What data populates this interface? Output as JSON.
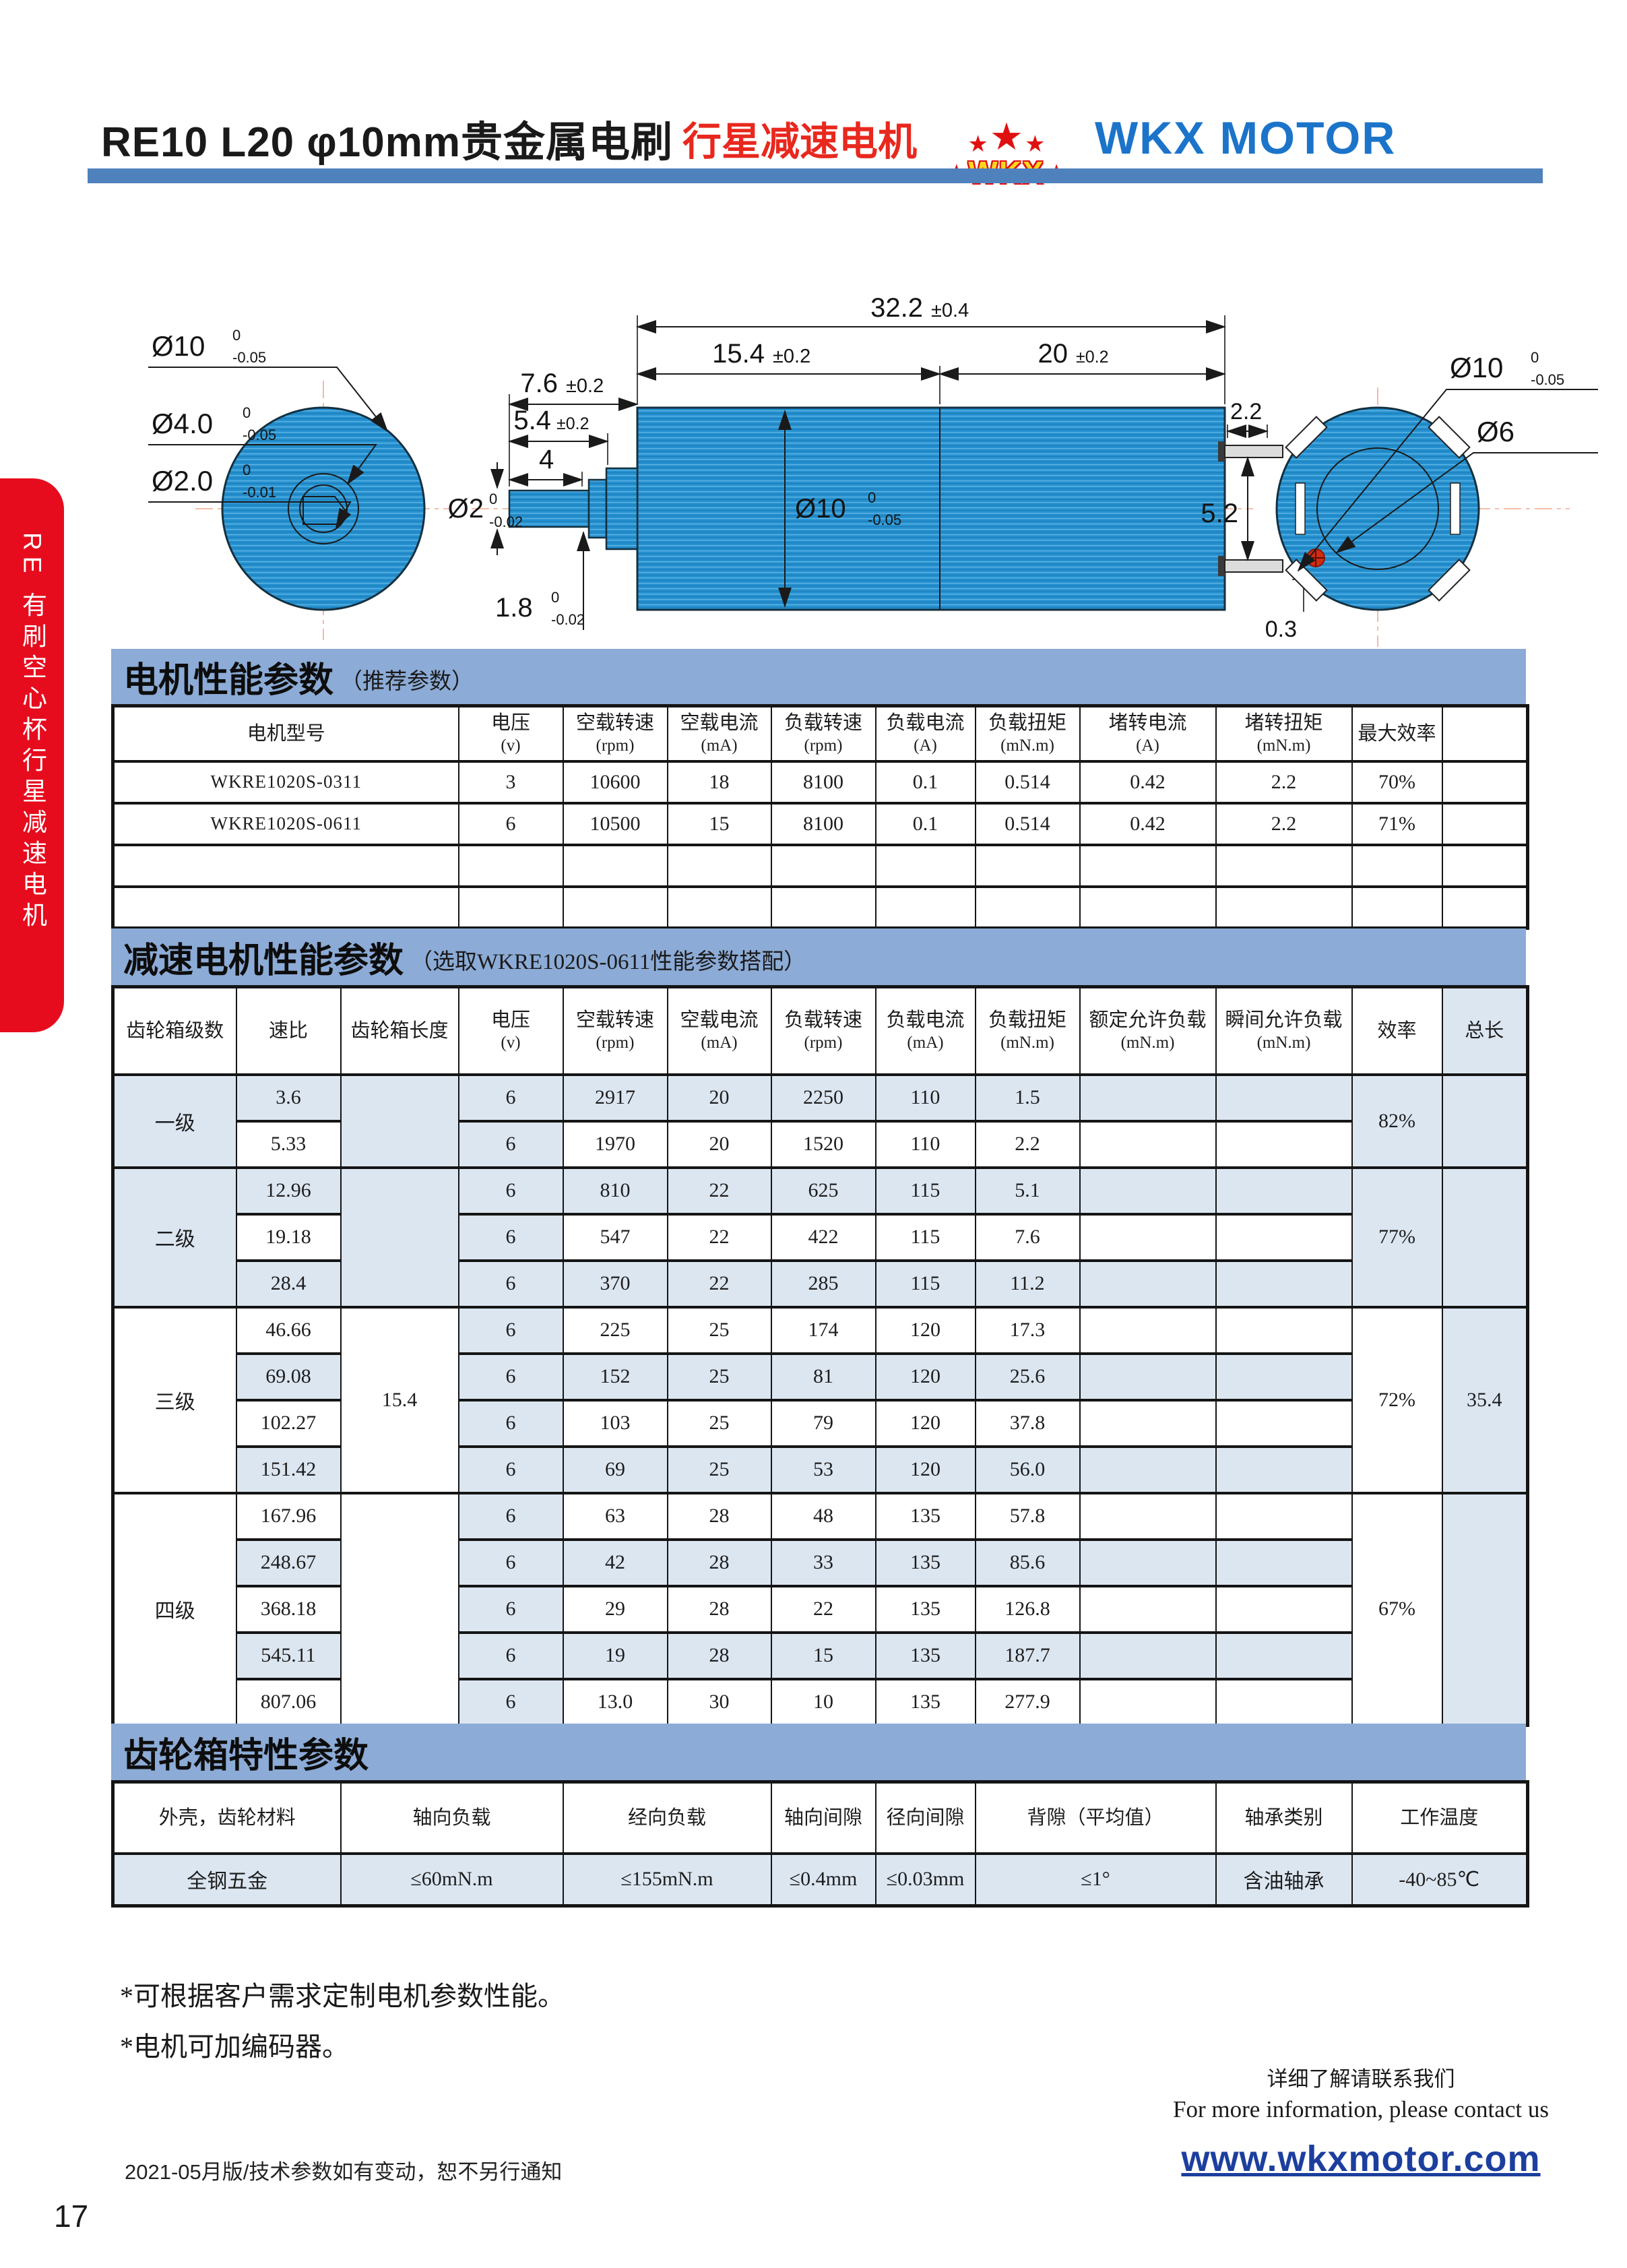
{
  "header": {
    "title_black": "RE10 L20 φ10mm贵金属电刷",
    "title_red": "行星减速电机",
    "brand": "WKX MOTOR",
    "logo": {
      "s1": "★",
      "s2": "★",
      "s3": "★",
      "left": "★",
      "text": "WKX",
      "right": "★"
    }
  },
  "side_tab": {
    "label": "RE 有刷空心杯行星减速电机"
  },
  "drawing": {
    "front": {
      "d10": {
        "v": "Ø10",
        "t": "0",
        "b": "-0.05"
      },
      "d4": {
        "v": "Ø4.0",
        "t": "0",
        "b": "-0.05"
      },
      "d2": {
        "v": "Ø2.0",
        "t": "0",
        "b": "-0.01"
      }
    },
    "side": {
      "len_total": {
        "v": "32.2",
        "tol": "±0.4"
      },
      "len_gear": {
        "v": "15.4",
        "tol": "±0.2"
      },
      "len_motor": {
        "v": "20",
        "tol": "±0.2"
      },
      "len_shaft": {
        "v": "7.6",
        "tol": "±0.2"
      },
      "len_step": {
        "v": "5.4",
        "tol": "±0.2"
      },
      "len_flat": {
        "v": "4"
      },
      "d10": {
        "v": "Ø10",
        "t": "0",
        "b": "-0.05"
      },
      "d2": {
        "v": "Ø2",
        "t": "0",
        "b": "-0.02"
      },
      "h18": {
        "v": "1.8",
        "t": "0",
        "b": "-0.02"
      }
    },
    "rear": {
      "d10": {
        "v": "Ø10",
        "t": "0",
        "b": "-0.05"
      },
      "d6": {
        "v": "Ø6"
      },
      "tab_len": "2.2",
      "tab_pitch": "5.2",
      "tab_thick": "0.3"
    }
  },
  "motor_table": {
    "title": "电机性能参数",
    "subtitle": "（推荐参数）",
    "headers": [
      {
        "t": "电机型号",
        "u": ""
      },
      {
        "t": "电压",
        "u": "(v)"
      },
      {
        "t": "空载转速",
        "u": "(rpm)"
      },
      {
        "t": "空载电流",
        "u": "(mA)"
      },
      {
        "t": "负载转速",
        "u": "(rpm)"
      },
      {
        "t": "负载电流",
        "u": "(A)"
      },
      {
        "t": "负载扭矩",
        "u": "(mN.m)"
      },
      {
        "t": "堵转电流",
        "u": "(A)"
      },
      {
        "t": "堵转扭矩",
        "u": "(mN.m)"
      },
      {
        "t": "最大效率",
        "u": ""
      },
      {
        "t": "",
        "u": ""
      }
    ],
    "rows": [
      [
        "WKRE1020S-0311",
        "3",
        "10600",
        "18",
        "8100",
        "0.1",
        "0.514",
        "0.42",
        "2.2",
        "70%",
        ""
      ],
      [
        "WKRE1020S-0611",
        "6",
        "10500",
        "15",
        "8100",
        "0.1",
        "0.514",
        "0.42",
        "2.2",
        "71%",
        ""
      ],
      [
        "",
        "",
        "",
        "",
        "",
        "",
        "",
        "",
        "",
        "",
        ""
      ],
      [
        "",
        "",
        "",
        "",
        "",
        "",
        "",
        "",
        "",
        "",
        ""
      ]
    ]
  },
  "gear_table": {
    "title": "减速电机性能参数",
    "subtitle": "（选取WKRE1020S-0611性能参数搭配）",
    "headers": [
      {
        "t": "齿轮箱级数",
        "u": ""
      },
      {
        "t": "速比",
        "u": ""
      },
      {
        "t": "齿轮箱长度",
        "u": ""
      },
      {
        "t": "电压",
        "u": "(v)"
      },
      {
        "t": "空载转速",
        "u": "(rpm)"
      },
      {
        "t": "空载电流",
        "u": "(mA)"
      },
      {
        "t": "负载转速",
        "u": "(rpm)"
      },
      {
        "t": "负载电流",
        "u": "(mA)"
      },
      {
        "t": "负载扭矩",
        "u": "(mN.m)"
      },
      {
        "t": "额定允许负载",
        "u": "(mN.m)"
      },
      {
        "t": "瞬间允许负载",
        "u": "(mN.m)"
      },
      {
        "t": "效率",
        "u": ""
      },
      {
        "t": "总长",
        "u": ""
      }
    ],
    "groups": [
      {
        "stage": "一级",
        "gear_len": "",
        "eff": "82%",
        "total": "",
        "rows": [
          [
            "3.6",
            "6",
            "2917",
            "20",
            "2250",
            "110",
            "1.5",
            "",
            ""
          ],
          [
            "5.33",
            "6",
            "1970",
            "20",
            "1520",
            "110",
            "2.2",
            "",
            ""
          ]
        ]
      },
      {
        "stage": "二级",
        "gear_len": "",
        "eff": "77%",
        "total": "",
        "rows": [
          [
            "12.96",
            "6",
            "810",
            "22",
            "625",
            "115",
            "5.1",
            "",
            ""
          ],
          [
            "19.18",
            "6",
            "547",
            "22",
            "422",
            "115",
            "7.6",
            "",
            ""
          ],
          [
            "28.4",
            "6",
            "370",
            "22",
            "285",
            "115",
            "11.2",
            "",
            ""
          ]
        ]
      },
      {
        "stage": "三级",
        "gear_len": "15.4",
        "eff": "72%",
        "total": "35.4",
        "rows": [
          [
            "46.66",
            "6",
            "225",
            "25",
            "174",
            "120",
            "17.3",
            "",
            ""
          ],
          [
            "69.08",
            "6",
            "152",
            "25",
            "81",
            "120",
            "25.6",
            "",
            ""
          ],
          [
            "102.27",
            "6",
            "103",
            "25",
            "79",
            "120",
            "37.8",
            "",
            ""
          ],
          [
            "151.42",
            "6",
            "69",
            "25",
            "53",
            "120",
            "56.0",
            "",
            ""
          ]
        ]
      },
      {
        "stage": "四级",
        "gear_len": "",
        "eff": "67%",
        "total": "",
        "rows": [
          [
            "167.96",
            "6",
            "63",
            "28",
            "48",
            "135",
            "57.8",
            "",
            ""
          ],
          [
            "248.67",
            "6",
            "42",
            "28",
            "33",
            "135",
            "85.6",
            "",
            ""
          ],
          [
            "368.18",
            "6",
            "29",
            "28",
            "22",
            "135",
            "126.8",
            "",
            ""
          ],
          [
            "545.11",
            "6",
            "19",
            "28",
            "15",
            "135",
            "187.7",
            "",
            ""
          ],
          [
            "807.06",
            "6",
            "13.0",
            "30",
            "10",
            "135",
            "277.9",
            "",
            ""
          ]
        ]
      }
    ]
  },
  "gearbox_table": {
    "title": "齿轮箱特性参数",
    "headers": [
      "外壳，齿轮材料",
      "轴向负载",
      "经向负载",
      "轴向间隙",
      "径向间隙",
      "背隙（平均值）",
      "轴承类别",
      "工作温度"
    ],
    "values": [
      "全钢五金",
      "≤60mN.m",
      "≤155mN.m",
      "≤0.4mm",
      "≤0.03mm",
      "≤1°",
      "含油轴承",
      "-40~85℃"
    ]
  },
  "footer": {
    "note1": "*可根据客户需求定制电机参数性能。",
    "note2": "*电机可加编码器。",
    "contact_cn": "详细了解请联系我们",
    "contact_en": "For more information, please contact us",
    "website": "www.wkxmotor.com",
    "version": "2021-05月版/技术参数如有变动，恕不另行通知",
    "page_number": "17"
  },
  "colors": {
    "accent_bar": "#4f81bd",
    "table_title_bar": "#8cabd6",
    "row_alt": "#dce6f1",
    "brand_blue": "#1b74c9",
    "brand_red": "#e8281e",
    "link_blue": "#1c3f9e",
    "drawing_blue": "#2590cf",
    "side_tab_red": "#e60c1e"
  }
}
